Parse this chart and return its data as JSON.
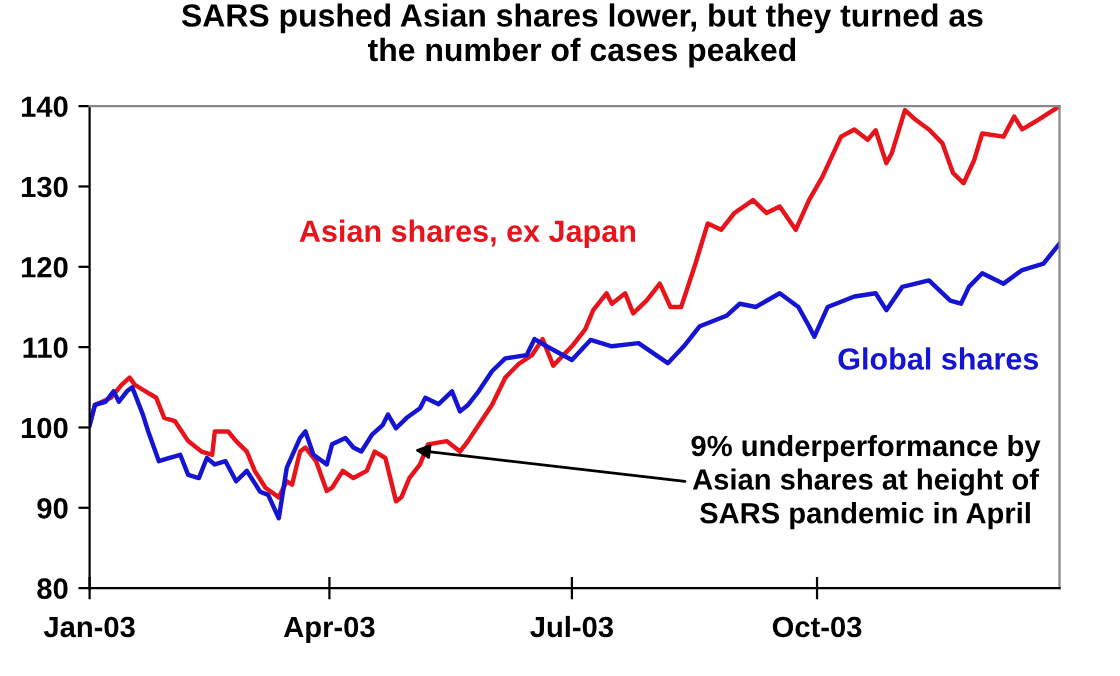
{
  "chart_data": {
    "type": "line",
    "title": "SARS pushed Asian shares lower, but they turned as\nthe number of cases peaked",
    "series": [
      {
        "name": "Asian shares, ex Japan",
        "color": "#e8141c",
        "x": [
          "2003-01-01",
          "2003-01-03",
          "2003-01-09",
          "2003-01-13",
          "2003-01-16",
          "2003-01-18",
          "2003-01-22",
          "2003-01-26",
          "2003-01-29",
          "2003-02-02",
          "2003-02-07",
          "2003-02-12",
          "2003-02-16",
          "2003-02-17",
          "2003-02-22",
          "2003-02-25",
          "2003-03-01",
          "2003-03-04",
          "2003-03-08",
          "2003-03-13",
          "2003-03-16",
          "2003-03-18",
          "2003-03-21",
          "2003-03-23",
          "2003-03-27",
          "2003-03-31",
          "2003-04-02",
          "2003-04-06",
          "2003-04-10",
          "2003-04-15",
          "2003-04-18",
          "2003-04-22",
          "2003-04-26",
          "2003-04-28",
          "2003-05-01",
          "2003-05-05",
          "2003-05-08",
          "2003-05-15",
          "2003-05-20",
          "2003-05-23",
          "2003-05-27",
          "2003-06-01",
          "2003-06-06",
          "2003-06-11",
          "2003-06-16",
          "2003-06-20",
          "2003-06-24",
          "2003-07-01",
          "2003-07-06",
          "2003-07-09",
          "2003-07-14",
          "2003-07-16",
          "2003-07-21",
          "2003-07-24",
          "2003-07-29",
          "2003-08-03",
          "2003-08-07",
          "2003-08-11",
          "2003-08-16",
          "2003-08-21",
          "2003-08-26",
          "2003-08-31",
          "2003-09-07",
          "2003-09-12",
          "2003-09-17",
          "2003-09-23",
          "2003-09-28",
          "2003-10-03",
          "2003-10-10",
          "2003-10-15",
          "2003-10-20",
          "2003-10-23",
          "2003-10-27",
          "2003-10-29",
          "2003-11-03",
          "2003-11-07",
          "2003-11-12",
          "2003-11-17",
          "2003-11-21",
          "2003-11-25",
          "2003-11-29",
          "2003-12-02",
          "2003-12-10",
          "2003-12-14",
          "2003-12-17",
          "2003-12-23",
          "2003-12-31"
        ],
        "values": [
          100.3,
          102.8,
          103.7,
          105.3,
          106.2,
          105.3,
          104.5,
          103.7,
          101.2,
          100.8,
          98.3,
          97,
          96.6,
          99.5,
          99.5,
          98.3,
          97,
          94.6,
          92.5,
          91.3,
          93.3,
          92.9,
          97,
          97.5,
          95.8,
          92.1,
          92.5,
          94.6,
          93.7,
          94.6,
          97,
          96.2,
          90.8,
          91.3,
          93.7,
          95.4,
          97.9,
          98.3,
          97,
          98.3,
          100.3,
          102.8,
          106.2,
          107.9,
          109,
          111,
          107.7,
          110.1,
          112.2,
          114.6,
          116.7,
          115.4,
          116.7,
          114.2,
          115.8,
          117.9,
          115,
          115,
          120,
          125.4,
          124.6,
          126.7,
          128.3,
          126.7,
          127.5,
          124.6,
          128.3,
          131.2,
          136.2,
          137.1,
          135.8,
          137,
          132.9,
          134.1,
          139.5,
          138.3,
          137.1,
          135.4,
          131.7,
          130.4,
          133.3,
          136.6,
          136.2,
          138.7,
          137.1,
          138.3,
          140
        ]
      },
      {
        "name": "Global shares",
        "color": "#1414d2",
        "x": [
          "2003-01-01",
          "2003-01-03",
          "2003-01-07",
          "2003-01-10",
          "2003-01-12",
          "2003-01-15",
          "2003-01-17",
          "2003-01-21",
          "2003-01-23",
          "2003-01-27",
          "2003-01-31",
          "2003-02-04",
          "2003-02-07",
          "2003-02-11",
          "2003-02-14",
          "2003-02-17",
          "2003-02-21",
          "2003-02-25",
          "2003-03-01",
          "2003-03-06",
          "2003-03-09",
          "2003-03-13",
          "2003-03-16",
          "2003-03-21",
          "2003-03-23",
          "2003-03-26",
          "2003-03-31",
          "2003-04-02",
          "2003-04-07",
          "2003-04-10",
          "2003-04-13",
          "2003-04-17",
          "2003-04-21",
          "2003-04-23",
          "2003-04-26",
          "2003-04-30",
          "2003-05-05",
          "2003-05-07",
          "2003-05-12",
          "2003-05-17",
          "2003-05-20",
          "2003-05-23",
          "2003-05-27",
          "2003-06-01",
          "2003-06-06",
          "2003-06-14",
          "2003-06-17",
          "2003-06-21",
          "2003-07-01",
          "2003-07-08",
          "2003-07-16",
          "2003-07-26",
          "2003-08-06",
          "2003-08-12",
          "2003-08-18",
          "2003-08-28",
          "2003-09-02",
          "2003-09-08",
          "2003-09-17",
          "2003-09-24",
          "2003-09-28",
          "2003-09-30",
          "2003-10-05",
          "2003-10-15",
          "2003-10-23",
          "2003-10-27",
          "2003-11-02",
          "2003-11-12",
          "2003-11-20",
          "2003-11-24",
          "2003-11-27",
          "2003-12-02",
          "2003-12-10",
          "2003-12-17",
          "2003-12-25",
          "2003-12-31"
        ],
        "values": [
          100.3,
          102.8,
          103.2,
          104.5,
          103.2,
          104.5,
          105,
          101.6,
          99.5,
          95.8,
          96.2,
          96.6,
          94.1,
          93.7,
          96.2,
          95.4,
          95.8,
          93.3,
          94.6,
          92,
          91.6,
          88.7,
          95,
          98.7,
          99.5,
          96.6,
          95.4,
          97.9,
          98.7,
          97.5,
          97,
          99.1,
          100.3,
          101.6,
          99.9,
          101.2,
          102.4,
          103.7,
          102.9,
          104.5,
          102,
          102.8,
          104.5,
          107,
          108.6,
          109,
          111,
          110.2,
          108.4,
          110.9,
          110.1,
          110.5,
          108,
          110.1,
          112.6,
          113.9,
          115.4,
          115,
          116.7,
          115,
          112.6,
          111.3,
          115,
          116.3,
          116.7,
          114.6,
          117.5,
          118.3,
          115.8,
          115.4,
          117.5,
          119.2,
          117.9,
          119.6,
          120.4,
          122.9
        ]
      }
    ],
    "xlim": [
      "2003-01-01",
      "2003-12-31"
    ],
    "xticks": [
      {
        "value": "2003-01-01",
        "label": "Jan-03"
      },
      {
        "value": "2003-04-01",
        "label": "Apr-03"
      },
      {
        "value": "2003-07-01",
        "label": "Jul-03"
      },
      {
        "value": "2003-10-01",
        "label": "Oct-03"
      }
    ],
    "ylim": [
      80,
      140
    ],
    "yticks": [
      80,
      90,
      100,
      110,
      120,
      130,
      140
    ],
    "grid": false,
    "legend": false,
    "annotations": [
      {
        "text": "9% underperformance by\nAsian shares at height of\nSARS pandemic in April",
        "x": "2003-05-03",
        "y": 97.2
      }
    ]
  }
}
